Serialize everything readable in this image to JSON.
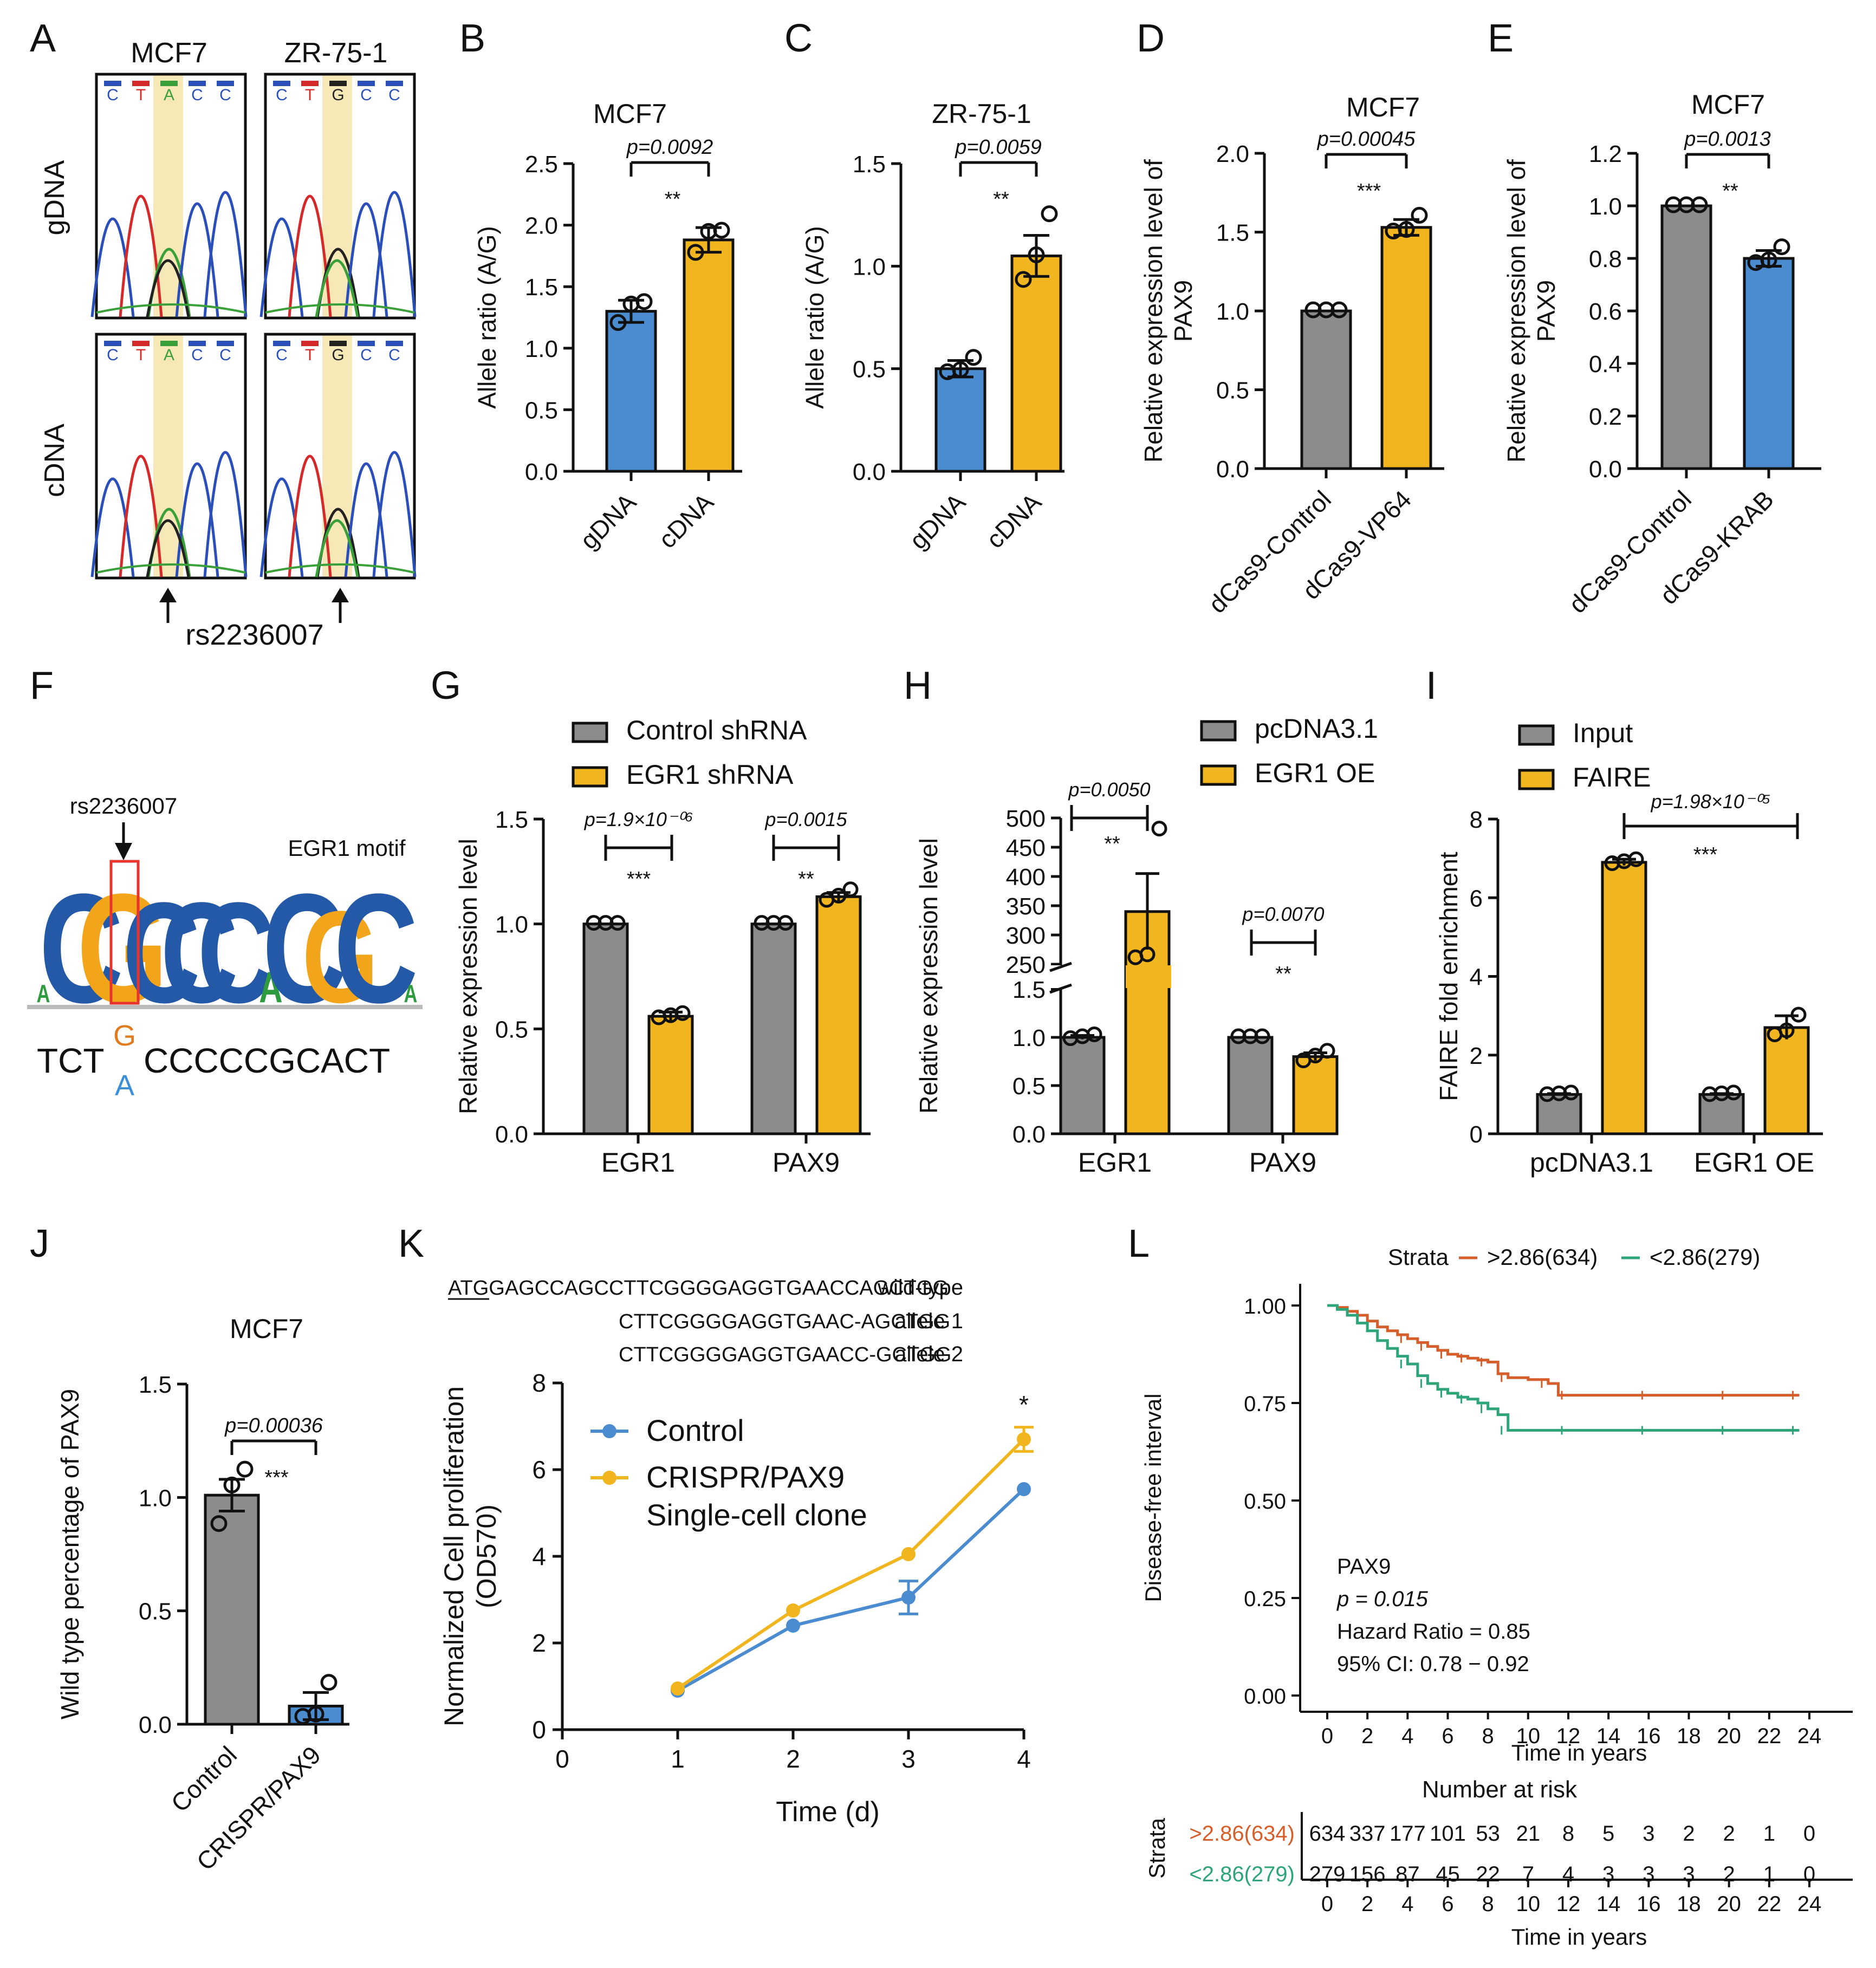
{
  "colors": {
    "blue": "#4a8ccf",
    "gold": "#f0b51f",
    "gray": "#8c8c8c",
    "orange": "#d55e2a",
    "teal": "#2ea579",
    "red_outline": "#e8322b"
  },
  "panel_letters": [
    "A",
    "B",
    "C",
    "D",
    "E",
    "F",
    "G",
    "H",
    "I",
    "J",
    "K",
    "L"
  ],
  "panel_a": {
    "col_titles": [
      "MCF7",
      "ZR-75-1"
    ],
    "row_labels": [
      "gDNA",
      "cDNA"
    ],
    "seq_left": [
      "C",
      "T",
      "A",
      "C",
      "C"
    ],
    "seq_right": [
      "C",
      "T",
      "G",
      "C",
      "C"
    ],
    "arrow_label": "rs2236007"
  },
  "panel_f": {
    "snp_label": "rs2236007",
    "motif_label": "EGR1 motif",
    "logo_letters": [
      "A",
      "C",
      "G",
      "C",
      "C",
      "C",
      "A",
      "C",
      "G",
      "C",
      "A"
    ],
    "seq_prefix": "TCT",
    "seq_upper": "G",
    "seq_lower": "A",
    "seq_suffix": "CCCCCGCACT"
  },
  "panel_k": {
    "seq_lines": [
      {
        "text": "ATGGAGCCAGCCTTCGGGGAGGTGAACCAGCTGG",
        "label": "wild-type"
      },
      {
        "text": "CTTCGGGGAGGTGAAC-AGCTGG",
        "label": "allele 1"
      },
      {
        "text": "CTTCGGGGAGGTGAACC-GCTGG",
        "label": "allele 2"
      }
    ]
  },
  "panel_l_table": {
    "title": "Number at risk",
    "ylabel": "Strata",
    "xlabel": "Time in years",
    "rows": [
      {
        "label": ">2.86(634)",
        "values": [
          "634",
          "337",
          "177",
          "101",
          "53",
          "21",
          "8",
          "5",
          "3",
          "2",
          "2",
          "1",
          "0"
        ]
      },
      {
        "label": "<2.86(279)",
        "values": [
          "279",
          "156",
          "87",
          "45",
          "22",
          "7",
          "4",
          "3",
          "3",
          "3",
          "2",
          "1",
          "0"
        ]
      }
    ],
    "ticks": [
      "0",
      "2",
      "4",
      "6",
      "8",
      "10",
      "12",
      "14",
      "16",
      "18",
      "20",
      "22",
      "24"
    ]
  },
  "chart_data": [
    {
      "id": "B",
      "type": "bar",
      "title": "MCF7",
      "categories": [
        "gDNA",
        "cDNA"
      ],
      "values": [
        1.3,
        1.88
      ],
      "errors": [
        0.09,
        0.1
      ],
      "points": [
        [
          1.2,
          1.35,
          1.37
        ],
        [
          1.77,
          1.94,
          1.95
        ]
      ],
      "ylabel": "Allele ratio (A/G)",
      "ylim": [
        0,
        2.5
      ],
      "yticks": [
        "0.0",
        "0.5",
        "1.0",
        "1.5",
        "2.0",
        "2.5"
      ],
      "pvalue": "p=0.0092",
      "stars": "**"
    },
    {
      "id": "C",
      "type": "bar",
      "title": "ZR-75-1",
      "categories": [
        "gDNA",
        "cDNA"
      ],
      "values": [
        0.5,
        1.05
      ],
      "errors": [
        0.04,
        0.1
      ],
      "points": [
        [
          0.48,
          0.49,
          0.55
        ],
        [
          0.93,
          1.05,
          1.25
        ]
      ],
      "ylabel": "Allele ratio (A/G)",
      "ylim": [
        0,
        1.5
      ],
      "yticks": [
        "0.0",
        "0.5",
        "1.0",
        "1.5"
      ],
      "pvalue": "p=0.0059",
      "stars": "**"
    },
    {
      "id": "D",
      "type": "bar",
      "title": "MCF7",
      "categories": [
        "dCas9-Control",
        "dCas9-VP64"
      ],
      "values": [
        1.0,
        1.53
      ],
      "errors": [
        0.0,
        0.05
      ],
      "points": [
        [
          1.0,
          1.0,
          1.0
        ],
        [
          1.5,
          1.51,
          1.6
        ]
      ],
      "ylabel": "Relative expression level of PAX9",
      "ylim": [
        0,
        2.0
      ],
      "yticks": [
        "0.0",
        "0.5",
        "1.0",
        "1.5",
        "2.0"
      ],
      "pvalue": "p=0.00045",
      "stars": "***"
    },
    {
      "id": "E",
      "type": "bar",
      "title": "MCF7",
      "categories": [
        "dCas9-Control",
        "dCas9-KRAB"
      ],
      "values": [
        1.0,
        0.8
      ],
      "errors": [
        0.0,
        0.03
      ],
      "points": [
        [
          1.0,
          1.0,
          1.0
        ],
        [
          0.78,
          0.79,
          0.84
        ]
      ],
      "ylabel": "Relative expression level of PAX9",
      "ylim": [
        0,
        1.2
      ],
      "yticks": [
        "0.0",
        "0.2",
        "0.4",
        "0.6",
        "0.8",
        "1.0",
        "1.2"
      ],
      "pvalue": "p=0.0013",
      "stars": "**"
    },
    {
      "id": "G",
      "type": "bar",
      "title": "",
      "categories": [
        "EGR1",
        "PAX9"
      ],
      "series": [
        {
          "name": "Control shRNA",
          "values": [
            1.0,
            1.0
          ],
          "errors": [
            0.0,
            0.0
          ],
          "points": [
            [
              1.0,
              1.0,
              1.0
            ],
            [
              1.0,
              1.0,
              1.0
            ]
          ]
        },
        {
          "name": "EGR1 shRNA",
          "values": [
            0.56,
            1.13
          ],
          "errors": [
            0.02,
            0.02
          ],
          "points": [
            [
              0.55,
              0.56,
              0.57
            ],
            [
              1.11,
              1.13,
              1.16
            ]
          ]
        }
      ],
      "ylabel": "Relative expression level",
      "ylim": [
        0,
        1.5
      ],
      "yticks": [
        "0.0",
        "0.5",
        "1.0",
        "1.5"
      ],
      "pvalues": [
        "p=1.9×10⁻⁰⁶",
        "p=0.0015"
      ],
      "stars": [
        "***",
        "**"
      ]
    },
    {
      "id": "H",
      "type": "bar",
      "title": "",
      "categories": [
        "EGR1",
        "PAX9"
      ],
      "series": [
        {
          "name": "pcDNA3.1",
          "values": [
            1.0,
            1.0
          ],
          "errors": [
            0.02,
            0.0
          ],
          "points": [
            [
              0.98,
              1.0,
              1.02
            ],
            [
              1.0,
              1.0,
              1.0
            ]
          ]
        },
        {
          "name": "EGR1 OE",
          "values": [
            340,
            0.8
          ],
          "errors": [
            65,
            0.04
          ],
          "points": [
            [
              260,
              265,
              480
            ],
            [
              0.75,
              0.8,
              0.85
            ]
          ]
        }
      ],
      "ylabel": "Relative expression level",
      "ylim": [
        0,
        500
      ],
      "axis_break": [
        1.5,
        250
      ],
      "yticks_low": [
        "0.0",
        "0.5",
        "1.0",
        "1.5"
      ],
      "yticks_high": [
        "250",
        "300",
        "350",
        "400",
        "450",
        "500"
      ],
      "pvalues": [
        "p=0.0050",
        "p=0.0070"
      ],
      "stars": [
        "**",
        "**"
      ]
    },
    {
      "id": "I",
      "type": "bar",
      "title": "",
      "categories": [
        "pcDNA3.1",
        "EGR1 OE"
      ],
      "series": [
        {
          "name": "Input",
          "values": [
            1.0,
            1.0
          ],
          "errors": [
            0.02,
            0.02
          ],
          "points": [
            [
              0.98,
              1.0,
              1.02
            ],
            [
              0.98,
              1.0,
              1.02
            ]
          ]
        },
        {
          "name": "FAIRE",
          "values": [
            6.9,
            2.7
          ],
          "errors": [
            0.08,
            0.3
          ],
          "points": [
            [
              6.85,
              6.9,
              6.95
            ],
            [
              2.5,
              2.6,
              3.0
            ]
          ]
        }
      ],
      "ylabel": "FAIRE fold enrichment",
      "ylim": [
        0,
        8
      ],
      "yticks": [
        "0",
        "2",
        "4",
        "6",
        "8"
      ],
      "pvalue": "p=1.98×10⁻⁰⁵",
      "stars": "***"
    },
    {
      "id": "J",
      "type": "bar",
      "title": "MCF7",
      "categories": [
        "Control",
        "CRISPR/PAX9"
      ],
      "values": [
        1.01,
        0.08
      ],
      "errors": [
        0.07,
        0.06
      ],
      "points": [
        [
          0.88,
          1.05,
          1.12
        ],
        [
          0.03,
          0.04,
          0.18
        ]
      ],
      "ylabel": "Wild type percentage of PAX9",
      "ylim": [
        0,
        1.5
      ],
      "yticks": [
        "0.0",
        "0.5",
        "1.0",
        "1.5"
      ],
      "pvalue": "p=0.00036",
      "stars": "***"
    },
    {
      "id": "K",
      "type": "line",
      "x": [
        1,
        2,
        3,
        4
      ],
      "series": [
        {
          "name": "Control",
          "values": [
            0.9,
            2.4,
            3.05,
            5.55
          ],
          "errors": [
            0.0,
            0.0,
            0.38,
            0.0
          ]
        },
        {
          "name": "CRISPR/PAX9 Single-cell clone",
          "values": [
            0.95,
            2.75,
            4.05,
            6.7
          ],
          "errors": [
            0.0,
            0.0,
            0.0,
            0.28
          ]
        }
      ],
      "xlabel": "Time (d)",
      "ylabel": "Normalized Cell proliferation (OD570)",
      "xlim": [
        0,
        4
      ],
      "ylim": [
        0,
        8
      ],
      "xticks": [
        "0",
        "1",
        "2",
        "3",
        "4"
      ],
      "yticks": [
        "0",
        "2",
        "4",
        "6",
        "8"
      ],
      "annotation": "*"
    },
    {
      "id": "L",
      "type": "line",
      "title": "Strata",
      "legend": [
        ">2.86(634)",
        "<2.86(279)"
      ],
      "series": [
        {
          "name": ">2.86(634)",
          "x": [
            0,
            0.5,
            1,
            1.5,
            2,
            2.5,
            3,
            3.5,
            4,
            4.5,
            5,
            5.5,
            6,
            6.5,
            7,
            7.5,
            8,
            8.5,
            9,
            10,
            11,
            11.5,
            12,
            14,
            16,
            18,
            20,
            22,
            23.5
          ],
          "values": [
            1.0,
            0.995,
            0.985,
            0.975,
            0.96,
            0.945,
            0.935,
            0.925,
            0.915,
            0.905,
            0.895,
            0.885,
            0.875,
            0.87,
            0.865,
            0.86,
            0.855,
            0.825,
            0.815,
            0.81,
            0.8,
            0.77,
            0.77,
            0.77,
            0.77,
            0.77,
            0.77,
            0.77,
            0.77
          ]
        },
        {
          "name": "<2.86(279)",
          "x": [
            0,
            0.5,
            1,
            1.5,
            2,
            2.5,
            3,
            3.5,
            4,
            4.5,
            5,
            5.5,
            6,
            6.5,
            7,
            7.5,
            8,
            8.5,
            9,
            10,
            12,
            14,
            16,
            18,
            20,
            22,
            23.5
          ],
          "values": [
            1.0,
            0.99,
            0.975,
            0.955,
            0.935,
            0.91,
            0.89,
            0.87,
            0.85,
            0.82,
            0.8,
            0.785,
            0.775,
            0.765,
            0.76,
            0.75,
            0.735,
            0.72,
            0.68,
            0.68,
            0.68,
            0.68,
            0.68,
            0.68,
            0.68,
            0.68,
            0.68
          ]
        }
      ],
      "xlabel": "Time in years",
      "ylabel": "Disease-free interval",
      "xlim": [
        0,
        24
      ],
      "ylim": [
        0,
        1.0
      ],
      "xticks": [
        "0",
        "2",
        "4",
        "6",
        "8",
        "10",
        "12",
        "14",
        "16",
        "18",
        "20",
        "22",
        "24"
      ],
      "yticks": [
        "0.00",
        "0.25",
        "0.50",
        "0.75",
        "1.00"
      ],
      "annotation_lines": [
        "PAX9",
        "p = 0.015",
        "Hazard Ratio = 0.85",
        "95% CI: 0.78 − 0.92"
      ]
    }
  ]
}
